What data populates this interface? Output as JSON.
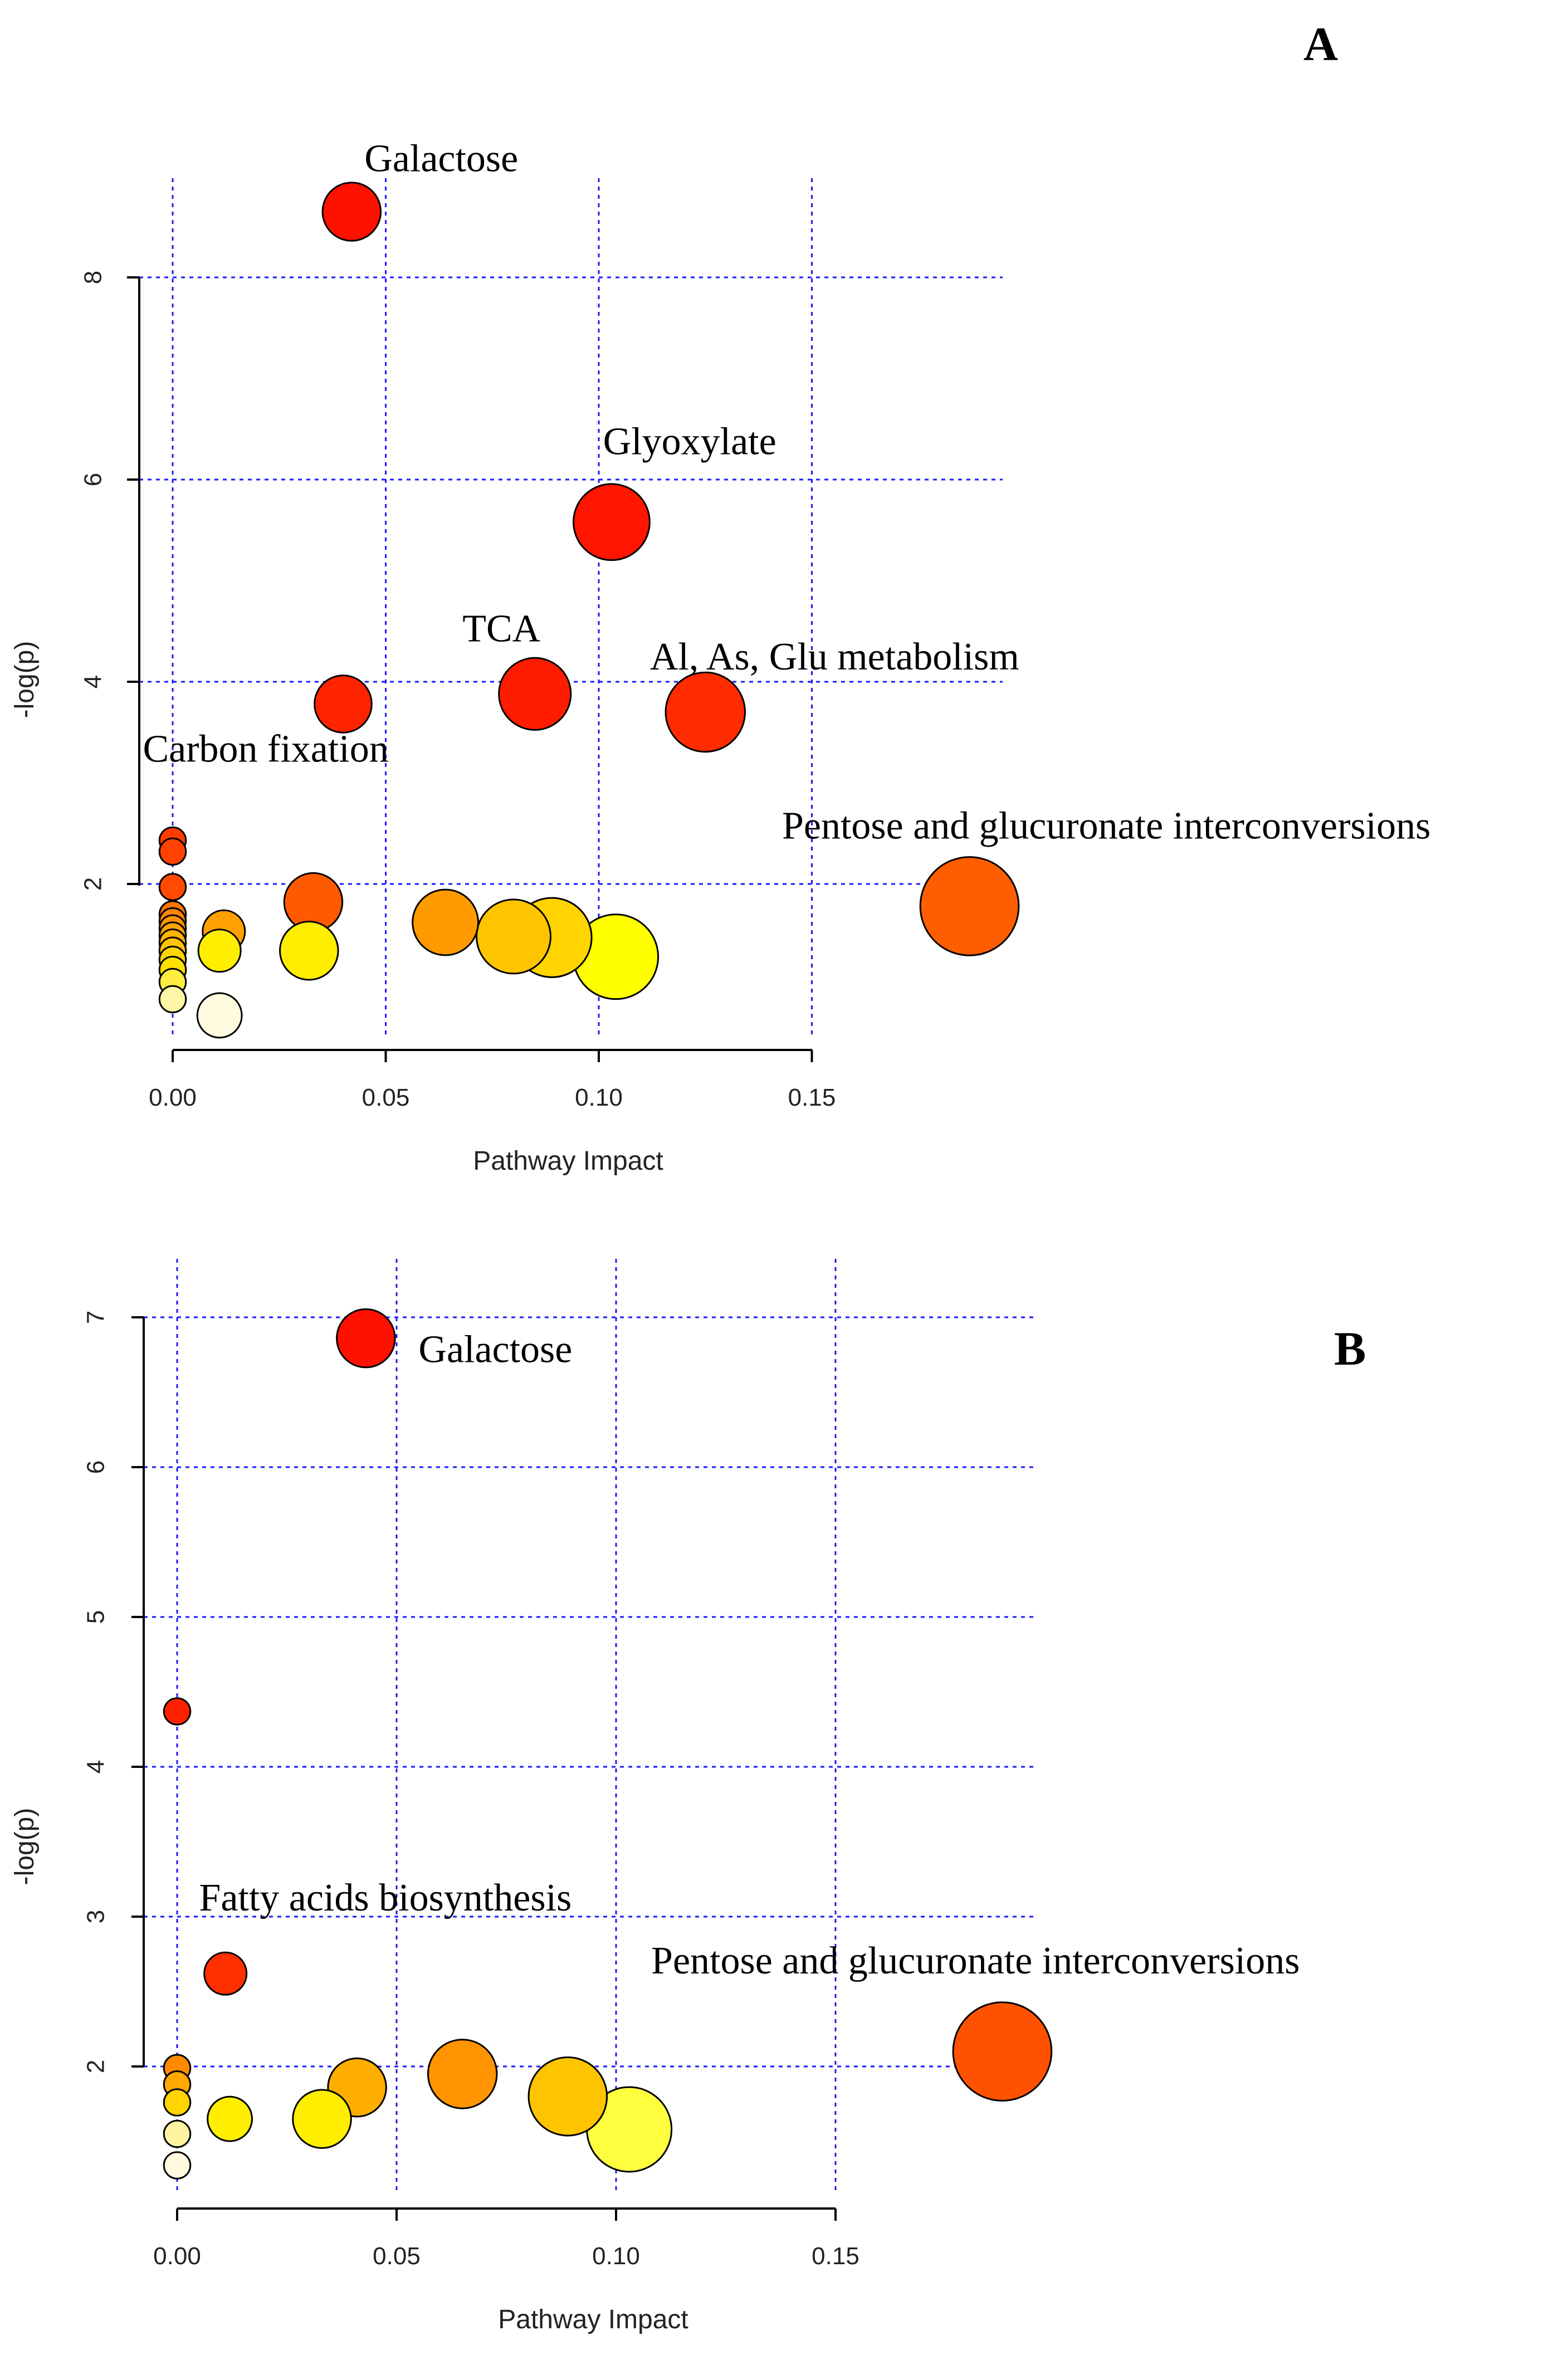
{
  "chart_data": [
    {
      "type": "scatter",
      "panel_label": "A",
      "xlabel": "Pathway Impact",
      "ylabel": "-log(p)",
      "xlim": [
        -0.007,
        0.195
      ],
      "ylim": [
        0.45,
        9.1
      ],
      "grid": true,
      "x_gridlines": [
        0,
        0.05,
        0.1,
        0.15
      ],
      "y_gridlines": [
        2,
        4,
        6,
        8
      ],
      "x_ticks": [
        0,
        0.05,
        0.1,
        0.15
      ],
      "x_tick_labels": [
        "0.00",
        "0.05",
        "0.10",
        "0.15"
      ],
      "y_ticks": [
        2,
        4,
        6,
        8
      ],
      "y_tick_labels": [
        "2",
        "4",
        "6",
        "8"
      ],
      "points": [
        {
          "x": 0.042,
          "y": 8.65,
          "size": 0.55,
          "color": "#ff1100"
        },
        {
          "x": 0.103,
          "y": 5.58,
          "size": 0.72,
          "color": "#ff1500"
        },
        {
          "x": 0.085,
          "y": 3.88,
          "size": 0.68,
          "color": "#ff1c00"
        },
        {
          "x": 0.04,
          "y": 3.78,
          "size": 0.54,
          "color": "#ff2400"
        },
        {
          "x": 0.125,
          "y": 3.7,
          "size": 0.75,
          "color": "#ff2c00"
        },
        {
          "x": 0.0,
          "y": 2.43,
          "size": 0.25,
          "color": "#ff3c00"
        },
        {
          "x": 0.0,
          "y": 2.32,
          "size": 0.25,
          "color": "#ff4200"
        },
        {
          "x": 0.0,
          "y": 1.97,
          "size": 0.25,
          "color": "#ff4a00"
        },
        {
          "x": 0.187,
          "y": 1.78,
          "size": 0.93,
          "color": "#ff5e00"
        },
        {
          "x": 0.033,
          "y": 1.82,
          "size": 0.55,
          "color": "#ff5a00"
        },
        {
          "x": 0.0,
          "y": 1.7,
          "size": 0.25,
          "color": "#ff7400"
        },
        {
          "x": 0.0,
          "y": 1.63,
          "size": 0.25,
          "color": "#ff8400"
        },
        {
          "x": 0.0,
          "y": 1.56,
          "size": 0.25,
          "color": "#ff9400"
        },
        {
          "x": 0.0,
          "y": 1.49,
          "size": 0.25,
          "color": "#ffa400"
        },
        {
          "x": 0.0,
          "y": 1.42,
          "size": 0.25,
          "color": "#ffb400"
        },
        {
          "x": 0.0,
          "y": 1.34,
          "size": 0.25,
          "color": "#ffc400"
        },
        {
          "x": 0.0,
          "y": 1.25,
          "size": 0.25,
          "color": "#ffd400"
        },
        {
          "x": 0.0,
          "y": 1.15,
          "size": 0.25,
          "color": "#ffe000"
        },
        {
          "x": 0.0,
          "y": 1.03,
          "size": 0.25,
          "color": "#ffee40"
        },
        {
          "x": 0.0,
          "y": 0.86,
          "size": 0.25,
          "color": "#fff6a8"
        },
        {
          "x": 0.012,
          "y": 1.53,
          "size": 0.4,
          "color": "#ffa000"
        },
        {
          "x": 0.011,
          "y": 1.34,
          "size": 0.4,
          "color": "#ffee00"
        },
        {
          "x": 0.064,
          "y": 1.62,
          "size": 0.62,
          "color": "#ff9a00"
        },
        {
          "x": 0.08,
          "y": 1.48,
          "size": 0.7,
          "color": "#ffc400"
        },
        {
          "x": 0.089,
          "y": 1.47,
          "size": 0.75,
          "color": "#ffd400"
        },
        {
          "x": 0.032,
          "y": 1.34,
          "size": 0.55,
          "color": "#ffee00"
        },
        {
          "x": 0.104,
          "y": 1.28,
          "size": 0.8,
          "color": "#ffff00"
        },
        {
          "x": 0.011,
          "y": 0.7,
          "size": 0.42,
          "color": "#fffbe0"
        }
      ],
      "annotations": [
        {
          "text": "Galactose",
          "x": 0.045,
          "y": 9.05
        },
        {
          "text": "Glyoxylate",
          "x": 0.101,
          "y": 6.25
        },
        {
          "text": "TCA",
          "x": 0.068,
          "y": 4.4
        },
        {
          "text": "Al, As, Glu metabolism",
          "x": 0.112,
          "y": 4.12
        },
        {
          "text": "Carbon fixation",
          "x": -0.007,
          "y": 3.21
        },
        {
          "text": "Pentose and glucuronate interconversions",
          "x": 0.143,
          "y": 2.45
        }
      ]
    },
    {
      "type": "scatter",
      "panel_label": "B",
      "xlabel": "Pathway Impact",
      "ylabel": "-log(p)",
      "xlim": [
        -0.007,
        0.195
      ],
      "ylim": [
        1.1,
        7.13
      ],
      "grid": true,
      "x_gridlines": [
        0,
        0.05,
        0.1,
        0.15
      ],
      "y_gridlines": [
        2,
        3,
        4,
        5,
        6,
        7
      ],
      "x_ticks": [
        0,
        0.05,
        0.1,
        0.15
      ],
      "x_tick_labels": [
        "0.00",
        "0.05",
        "0.10",
        "0.15"
      ],
      "y_ticks": [
        2,
        3,
        4,
        5,
        6,
        7
      ],
      "y_tick_labels": [
        "2",
        "3",
        "4",
        "5",
        "6",
        "7"
      ],
      "points": [
        {
          "x": 0.043,
          "y": 6.86,
          "size": 0.55,
          "color": "#ff1100"
        },
        {
          "x": 0.0,
          "y": 4.37,
          "size": 0.25,
          "color": "#ff2000"
        },
        {
          "x": 0.011,
          "y": 2.62,
          "size": 0.4,
          "color": "#ff3000"
        },
        {
          "x": 0.188,
          "y": 2.1,
          "size": 0.93,
          "color": "#ff5200"
        },
        {
          "x": 0.0,
          "y": 1.99,
          "size": 0.25,
          "color": "#ff8a00"
        },
        {
          "x": 0.0,
          "y": 1.88,
          "size": 0.25,
          "color": "#ffa800"
        },
        {
          "x": 0.0,
          "y": 1.76,
          "size": 0.25,
          "color": "#ffd400"
        },
        {
          "x": 0.0,
          "y": 1.55,
          "size": 0.25,
          "color": "#fff5a0"
        },
        {
          "x": 0.0,
          "y": 1.34,
          "size": 0.25,
          "color": "#fffae0"
        },
        {
          "x": 0.012,
          "y": 1.65,
          "size": 0.42,
          "color": "#ffee00"
        },
        {
          "x": 0.041,
          "y": 1.86,
          "size": 0.55,
          "color": "#ffae00"
        },
        {
          "x": 0.065,
          "y": 1.95,
          "size": 0.65,
          "color": "#ff9400"
        },
        {
          "x": 0.033,
          "y": 1.65,
          "size": 0.55,
          "color": "#ffee00"
        },
        {
          "x": 0.089,
          "y": 1.8,
          "size": 0.74,
          "color": "#ffc400"
        },
        {
          "x": 0.103,
          "y": 1.58,
          "size": 0.8,
          "color": "#ffff40"
        }
      ],
      "annotations": [
        {
          "text": "Galactose",
          "x": 0.055,
          "y": 6.7
        },
        {
          "text": "Fatty acids biosynthesis",
          "x": 0.005,
          "y": 3.04
        },
        {
          "text": "Pentose and glucuronate interconversions",
          "x": 0.108,
          "y": 2.62
        }
      ]
    }
  ]
}
